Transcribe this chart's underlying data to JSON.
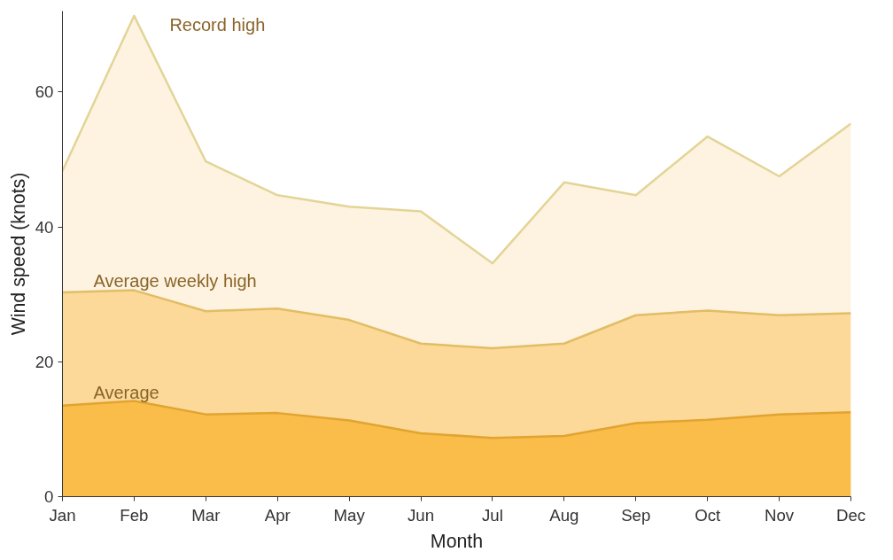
{
  "chart_data": {
    "type": "area",
    "xlabel": "Month",
    "ylabel": "Wind speed (knots)",
    "categories": [
      "Jan",
      "Feb",
      "Mar",
      "Apr",
      "May",
      "Jun",
      "Jul",
      "Aug",
      "Sep",
      "Oct",
      "Nov",
      "Dec"
    ],
    "series": [
      {
        "color": "#fdf3e0",
        "values": [
          48.3,
          71.3,
          49.7,
          44.7,
          43.0,
          42.3,
          34.6,
          46.6,
          44.7,
          53.4,
          47.5,
          55.3
        ]
      },
      {
        "color": "#fcd998",
        "values": [
          30.3,
          30.6,
          27.5,
          27.9,
          26.2,
          22.7,
          22.0,
          22.7,
          26.9,
          27.6,
          26.9,
          27.2
        ]
      },
      {
        "color": "#fbbd4a",
        "values": [
          13.5,
          14.2,
          12.2,
          12.4,
          11.3,
          9.4,
          8.7,
          9.0,
          10.9,
          11.4,
          12.2,
          12.5
        ]
      }
    ],
    "annotations": [
      {
        "text": "Record high",
        "x": "Feb",
        "y": 70
      },
      {
        "text": "Average weekly high",
        "x": "Jan",
        "y": 32
      },
      {
        "text": "Average",
        "x": "Jan",
        "y": 15.5
      }
    ],
    "ylim": [
      0,
      72
    ],
    "yticks": [
      0,
      20,
      40,
      60
    ],
    "grid": false
  }
}
